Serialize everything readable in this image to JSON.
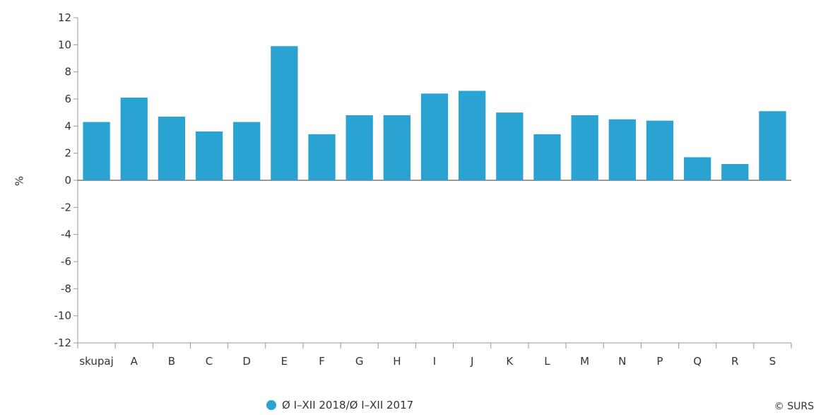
{
  "chart_data": {
    "type": "bar",
    "categories": [
      "skupaj",
      "A",
      "B",
      "C",
      "D",
      "E",
      "F",
      "G",
      "H",
      "I",
      "J",
      "K",
      "L",
      "M",
      "N",
      "P",
      "Q",
      "R",
      "S"
    ],
    "series": [
      {
        "name": "Ø I–XII 2018/Ø I–XII 2017",
        "color": "#2aa2d2",
        "values": [
          4.3,
          6.1,
          4.7,
          3.6,
          4.3,
          9.9,
          3.4,
          4.8,
          4.8,
          6.4,
          6.6,
          5.0,
          3.4,
          4.8,
          4.5,
          4.4,
          1.7,
          1.2,
          5.1
        ]
      }
    ],
    "ylabel": "%",
    "ylim": [
      -12,
      12
    ],
    "yticks": [
      "12",
      "10",
      "8",
      "6",
      "4",
      "2",
      "0",
      "-2",
      "-4",
      "-6",
      "-8",
      "-10",
      "-12"
    ],
    "grid": false,
    "legend": {
      "position": "bottom-center",
      "marker": "circle"
    }
  },
  "credit": "© SURS"
}
